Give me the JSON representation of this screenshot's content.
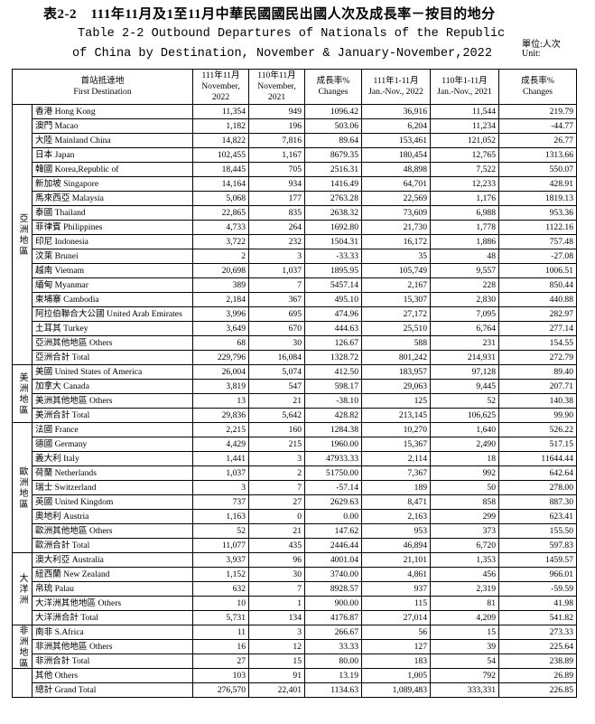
{
  "header": {
    "title_zh": "表2-2　111年11月及1至11月中華民國國民出國人次及成長率－按目的地分",
    "title_en": [
      "Table 2-2 Outbound Departures of Nationals of the Republic",
      "of China by Destination, November & January-November,2022"
    ],
    "unit_zh": "單位:人次",
    "unit_en": "Unit:"
  },
  "table": {
    "columns": [
      [
        "首站抵達地",
        "First Destination"
      ],
      [
        "111年11月",
        "November,",
        "2022"
      ],
      [
        "110年11月",
        "November,",
        "2021"
      ],
      [
        "成長率%",
        "Changes"
      ],
      [
        "111年1-11月",
        "Jan.-Nov., 2022"
      ],
      [
        "110年1-11月",
        "Jan.-Nov., 2021"
      ],
      [
        "成長率%",
        "Changes"
      ]
    ],
    "groups": [
      {
        "region": "亞洲地區",
        "rows": [
          [
            "香港 Hong Kong",
            "11,354",
            "949",
            "1096.42",
            "36,916",
            "11,544",
            "219.79"
          ],
          [
            "澳門 Macao",
            "1,182",
            "196",
            "503.06",
            "6,204",
            "11,234",
            "-44.77"
          ],
          [
            "大陸 Mainland China",
            "14,822",
            "7,816",
            "89.64",
            "153,461",
            "121,052",
            "26.77"
          ],
          [
            "日本 Japan",
            "102,455",
            "1,167",
            "8679.35",
            "180,454",
            "12,765",
            "1313.66"
          ],
          [
            "韓國 Korea,Republic of",
            "18,445",
            "705",
            "2516.31",
            "48,898",
            "7,522",
            "550.07"
          ],
          [
            "新加坡 Singapore",
            "14,164",
            "934",
            "1416.49",
            "64,701",
            "12,233",
            "428.91"
          ],
          [
            "馬來西亞 Malaysia",
            "5,068",
            "177",
            "2763.28",
            "22,569",
            "1,176",
            "1819.13"
          ],
          [
            "泰國 Thailand",
            "22,865",
            "835",
            "2638.32",
            "73,609",
            "6,988",
            "953.36"
          ],
          [
            "菲律賓 Philippines",
            "4,733",
            "264",
            "1692.80",
            "21,730",
            "1,778",
            "1122.16"
          ],
          [
            "印尼 Indonesia",
            "3,722",
            "232",
            "1504.31",
            "16,172",
            "1,886",
            "757.48"
          ],
          [
            "汶萊 Brunei",
            "2",
            "3",
            "-33.33",
            "35",
            "48",
            "-27.08"
          ],
          [
            "越南 Vietnam",
            "20,698",
            "1,037",
            "1895.95",
            "105,749",
            "9,557",
            "1006.51"
          ],
          [
            "緬甸 Myanmar",
            "389",
            "7",
            "5457.14",
            "2,167",
            "228",
            "850.44"
          ],
          [
            "柬埔寨 Cambodia",
            "2,184",
            "367",
            "495.10",
            "15,307",
            "2,830",
            "440.88"
          ],
          [
            "阿拉伯聯合大公國 United Arab Emirates",
            "3,996",
            "695",
            "474.96",
            "27,172",
            "7,095",
            "282.97"
          ],
          [
            "土耳其 Turkey",
            "3,649",
            "670",
            "444.63",
            "25,510",
            "6,764",
            "277.14"
          ],
          [
            "亞洲其他地區 Others",
            "68",
            "30",
            "126.67",
            "588",
            "231",
            "154.55"
          ],
          [
            "亞洲合計 Total",
            "229,796",
            "16,084",
            "1328.72",
            "801,242",
            "214,931",
            "272.79"
          ]
        ]
      },
      {
        "region": "美洲地區",
        "rows": [
          [
            "美國 United States of America",
            "26,004",
            "5,074",
            "412.50",
            "183,957",
            "97,128",
            "89.40"
          ],
          [
            "加拿大 Canada",
            "3,819",
            "547",
            "598.17",
            "29,063",
            "9,445",
            "207.71"
          ],
          [
            "美洲其他地區 Others",
            "13",
            "21",
            "-38.10",
            "125",
            "52",
            "140.38"
          ],
          [
            "美洲合計 Total",
            "29,836",
            "5,642",
            "428.82",
            "213,145",
            "106,625",
            "99.90"
          ]
        ]
      },
      {
        "region": "歐洲地區",
        "rows": [
          [
            "法國 France",
            "2,215",
            "160",
            "1284.38",
            "10,270",
            "1,640",
            "526.22"
          ],
          [
            "德國 Germany",
            "4,429",
            "215",
            "1960.00",
            "15,367",
            "2,490",
            "517.15"
          ],
          [
            "義大利 Italy",
            "1,441",
            "3",
            "47933.33",
            "2,114",
            "18",
            "11644.44"
          ],
          [
            "荷蘭 Netherlands",
            "1,037",
            "2",
            "51750.00",
            "7,367",
            "992",
            "642.64"
          ],
          [
            "瑞士 Switzerland",
            "3",
            "7",
            "-57.14",
            "189",
            "50",
            "278.00"
          ],
          [
            "英國 United Kingdom",
            "737",
            "27",
            "2629.63",
            "8,471",
            "858",
            "887.30"
          ],
          [
            "奧地利 Austria",
            "1,163",
            "0",
            "0.00",
            "2,163",
            "299",
            "623.41"
          ],
          [
            "歐洲其他地區 Others",
            "52",
            "21",
            "147.62",
            "953",
            "373",
            "155.50"
          ],
          [
            "歐洲合計 Total",
            "11,077",
            "435",
            "2446.44",
            "46,894",
            "6,720",
            "597.83"
          ]
        ]
      },
      {
        "region": "大洋洲",
        "rows": [
          [
            "澳大利亞 Australia",
            "3,937",
            "96",
            "4001.04",
            "21,101",
            "1,353",
            "1459.57"
          ],
          [
            "紐西蘭 New Zealand",
            "1,152",
            "30",
            "3740.00",
            "4,861",
            "456",
            "966.01"
          ],
          [
            "帛琉 Palau",
            "632",
            "7",
            "8928.57",
            "937",
            "2,319",
            "-59.59"
          ],
          [
            "大洋洲其他地區 Others",
            "10",
            "1",
            "900.00",
            "115",
            "81",
            "41.98"
          ],
          [
            "大洋洲合計 Total",
            "5,731",
            "134",
            "4176.87",
            "27,014",
            "4,209",
            "541.82"
          ]
        ]
      },
      {
        "region": "非洲地區",
        "rows": [
          [
            "南非 S.Africa",
            "11",
            "3",
            "266.67",
            "56",
            "15",
            "273.33"
          ],
          [
            "非洲其他地區 Others",
            "16",
            "12",
            "33.33",
            "127",
            "39",
            "225.64"
          ],
          [
            "非洲合計 Total",
            "27",
            "15",
            "80.00",
            "183",
            "54",
            "238.89"
          ]
        ]
      }
    ],
    "others": [
      "其他 Others",
      "103",
      "91",
      "13.19",
      "1,005",
      "792",
      "26.89"
    ],
    "grand_total": [
      "總計 Grand Total",
      "276,570",
      "22,401",
      "1134.63",
      "1,089,483",
      "333,331",
      "226.85"
    ]
  }
}
